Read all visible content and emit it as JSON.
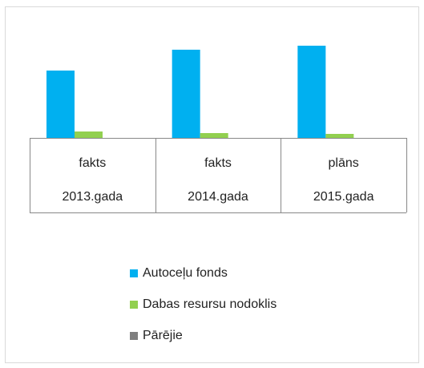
{
  "chart_data": {
    "type": "bar",
    "categories": [
      "fakts",
      "fakts",
      "plāns"
    ],
    "category_groups": [
      "2013.gada",
      "2014.gada",
      "2015.gada"
    ],
    "series": [
      {
        "name": "Autoceļu fonds",
        "color": "#00b0f0",
        "values": [
          84,
          110,
          115
        ]
      },
      {
        "name": "Dabas resursu nodoklis",
        "color": "#92d050",
        "values": [
          8,
          6,
          5
        ]
      },
      {
        "name": "Pārējie",
        "color": "#7f7f7f",
        "values": [
          0,
          0,
          0
        ]
      }
    ],
    "ylim": [
      0,
      150
    ]
  }
}
